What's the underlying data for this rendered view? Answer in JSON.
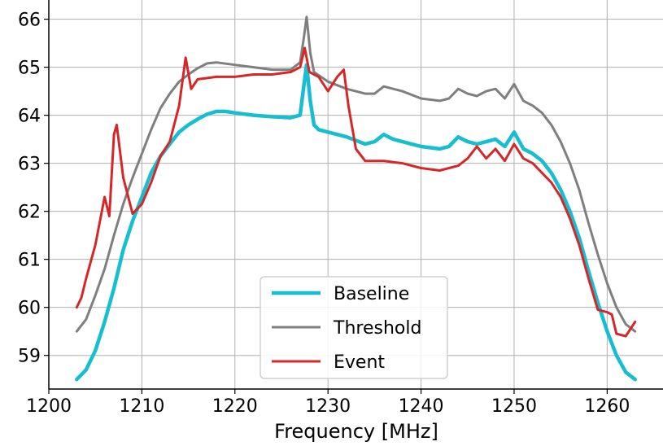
{
  "chart_data": {
    "type": "line",
    "title": "",
    "xlabel": "Frequency [MHz]",
    "ylabel": "",
    "xlim": [
      1200,
      1266
    ],
    "ylim": [
      58.3,
      66.4
    ],
    "xticks": [
      1200,
      1210,
      1220,
      1230,
      1240,
      1250,
      1260
    ],
    "yticks": [
      59,
      60,
      61,
      62,
      63,
      64,
      65,
      66
    ],
    "grid": true,
    "legend_position": "bottom-center",
    "series": [
      {
        "name": "Baseline",
        "color": "#17becf",
        "line_width": 4.5,
        "points": [
          [
            1203,
            58.5
          ],
          [
            1204,
            58.7
          ],
          [
            1205,
            59.1
          ],
          [
            1206,
            59.7
          ],
          [
            1207,
            60.4
          ],
          [
            1208,
            61.2
          ],
          [
            1209,
            61.8
          ],
          [
            1210,
            62.3
          ],
          [
            1211,
            62.8
          ],
          [
            1212,
            63.15
          ],
          [
            1213,
            63.4
          ],
          [
            1214,
            63.65
          ],
          [
            1215,
            63.8
          ],
          [
            1216,
            63.92
          ],
          [
            1217,
            64.02
          ],
          [
            1218,
            64.08
          ],
          [
            1219,
            64.08
          ],
          [
            1220,
            64.05
          ],
          [
            1222,
            64.0
          ],
          [
            1224,
            63.97
          ],
          [
            1226,
            63.95
          ],
          [
            1227,
            64.0
          ],
          [
            1227.4,
            64.6
          ],
          [
            1227.7,
            65.05
          ],
          [
            1228.1,
            64.3
          ],
          [
            1228.5,
            63.8
          ],
          [
            1229,
            63.7
          ],
          [
            1230,
            63.65
          ],
          [
            1232,
            63.55
          ],
          [
            1234,
            63.4
          ],
          [
            1235,
            63.45
          ],
          [
            1236,
            63.6
          ],
          [
            1237,
            63.5
          ],
          [
            1238,
            63.45
          ],
          [
            1240,
            63.35
          ],
          [
            1242,
            63.3
          ],
          [
            1243,
            63.35
          ],
          [
            1244,
            63.55
          ],
          [
            1245,
            63.45
          ],
          [
            1246,
            63.4
          ],
          [
            1247,
            63.45
          ],
          [
            1248,
            63.5
          ],
          [
            1249,
            63.35
          ],
          [
            1250,
            63.65
          ],
          [
            1251,
            63.3
          ],
          [
            1252,
            63.2
          ],
          [
            1253,
            63.05
          ],
          [
            1254,
            62.8
          ],
          [
            1255,
            62.45
          ],
          [
            1256,
            62.0
          ],
          [
            1257,
            61.45
          ],
          [
            1258,
            60.75
          ],
          [
            1259,
            60.1
          ],
          [
            1260,
            59.5
          ],
          [
            1261,
            59.0
          ],
          [
            1262,
            58.65
          ],
          [
            1263,
            58.5
          ]
        ]
      },
      {
        "name": "Threshold",
        "color": "#7f7f7f",
        "line_width": 3,
        "points": [
          [
            1203,
            59.5
          ],
          [
            1204,
            59.75
          ],
          [
            1205,
            60.25
          ],
          [
            1206,
            60.8
          ],
          [
            1207,
            61.5
          ],
          [
            1208,
            62.15
          ],
          [
            1209,
            62.7
          ],
          [
            1210,
            63.2
          ],
          [
            1211,
            63.7
          ],
          [
            1212,
            64.15
          ],
          [
            1213,
            64.45
          ],
          [
            1214,
            64.7
          ],
          [
            1215,
            64.85
          ],
          [
            1216,
            64.98
          ],
          [
            1217,
            65.08
          ],
          [
            1218,
            65.1
          ],
          [
            1220,
            65.05
          ],
          [
            1222,
            65.0
          ],
          [
            1224,
            64.95
          ],
          [
            1226,
            64.95
          ],
          [
            1227,
            65.1
          ],
          [
            1227.4,
            65.6
          ],
          [
            1227.7,
            66.05
          ],
          [
            1228.1,
            65.3
          ],
          [
            1228.5,
            64.9
          ],
          [
            1230,
            64.7
          ],
          [
            1232,
            64.55
          ],
          [
            1234,
            64.45
          ],
          [
            1235,
            64.45
          ],
          [
            1236,
            64.6
          ],
          [
            1237,
            64.55
          ],
          [
            1238,
            64.5
          ],
          [
            1240,
            64.35
          ],
          [
            1242,
            64.3
          ],
          [
            1243,
            64.35
          ],
          [
            1244,
            64.55
          ],
          [
            1245,
            64.45
          ],
          [
            1246,
            64.4
          ],
          [
            1247,
            64.5
          ],
          [
            1248,
            64.55
          ],
          [
            1249,
            64.35
          ],
          [
            1250,
            64.65
          ],
          [
            1251,
            64.3
          ],
          [
            1252,
            64.2
          ],
          [
            1253,
            64.05
          ],
          [
            1254,
            63.8
          ],
          [
            1255,
            63.45
          ],
          [
            1256,
            63.0
          ],
          [
            1257,
            62.45
          ],
          [
            1258,
            61.75
          ],
          [
            1259,
            61.1
          ],
          [
            1260,
            60.5
          ],
          [
            1261,
            60.0
          ],
          [
            1262,
            59.65
          ],
          [
            1263,
            59.5
          ]
        ]
      },
      {
        "name": "Event",
        "color": "#d62728",
        "line_width": 3,
        "points": [
          [
            1203,
            60.0
          ],
          [
            1203.5,
            60.2
          ],
          [
            1204,
            60.6
          ],
          [
            1205,
            61.3
          ],
          [
            1206,
            62.3
          ],
          [
            1206.5,
            61.9
          ],
          [
            1207,
            63.6
          ],
          [
            1207.3,
            63.8
          ],
          [
            1208,
            62.7
          ],
          [
            1209,
            61.95
          ],
          [
            1210,
            62.15
          ],
          [
            1211,
            62.6
          ],
          [
            1212,
            63.15
          ],
          [
            1213,
            63.45
          ],
          [
            1214,
            64.2
          ],
          [
            1214.7,
            65.2
          ],
          [
            1215.3,
            64.55
          ],
          [
            1216,
            64.75
          ],
          [
            1218,
            64.8
          ],
          [
            1220,
            64.8
          ],
          [
            1222,
            64.85
          ],
          [
            1224,
            64.85
          ],
          [
            1226,
            64.9
          ],
          [
            1227,
            65.0
          ],
          [
            1227.5,
            65.4
          ],
          [
            1228,
            64.9
          ],
          [
            1229,
            64.8
          ],
          [
            1230,
            64.5
          ],
          [
            1231,
            64.8
          ],
          [
            1231.7,
            64.95
          ],
          [
            1232.2,
            64.2
          ],
          [
            1233,
            63.3
          ],
          [
            1234,
            63.05
          ],
          [
            1236,
            63.05
          ],
          [
            1238,
            63.0
          ],
          [
            1240,
            62.9
          ],
          [
            1242,
            62.85
          ],
          [
            1244,
            62.95
          ],
          [
            1245,
            63.1
          ],
          [
            1246,
            63.35
          ],
          [
            1247,
            63.1
          ],
          [
            1248,
            63.3
          ],
          [
            1249,
            63.05
          ],
          [
            1250,
            63.4
          ],
          [
            1251,
            63.1
          ],
          [
            1252,
            63.0
          ],
          [
            1253,
            62.8
          ],
          [
            1254,
            62.6
          ],
          [
            1255,
            62.3
          ],
          [
            1256,
            61.85
          ],
          [
            1257,
            61.3
          ],
          [
            1258,
            60.6
          ],
          [
            1259,
            59.95
          ],
          [
            1260,
            59.9
          ],
          [
            1260.5,
            59.85
          ],
          [
            1261,
            59.45
          ],
          [
            1262,
            59.4
          ],
          [
            1263,
            59.7
          ]
        ]
      }
    ]
  }
}
